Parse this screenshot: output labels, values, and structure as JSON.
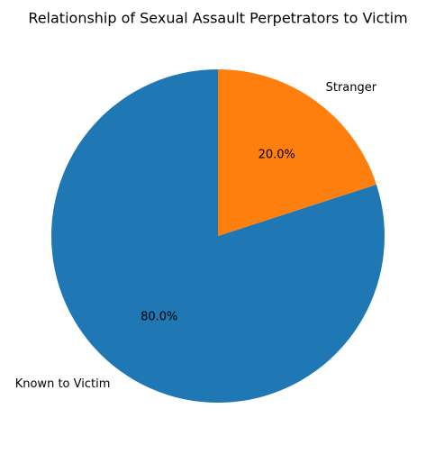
{
  "chart_data": {
    "type": "pie",
    "title": "Relationship of Sexual Assault Perpetrators to Victim",
    "categories": [
      "Known to Victim",
      "Stranger"
    ],
    "values": [
      80,
      20
    ],
    "value_labels": [
      "80.0%",
      "20.0%"
    ],
    "colors": [
      "#1f77b4",
      "#ff7f0e"
    ]
  }
}
